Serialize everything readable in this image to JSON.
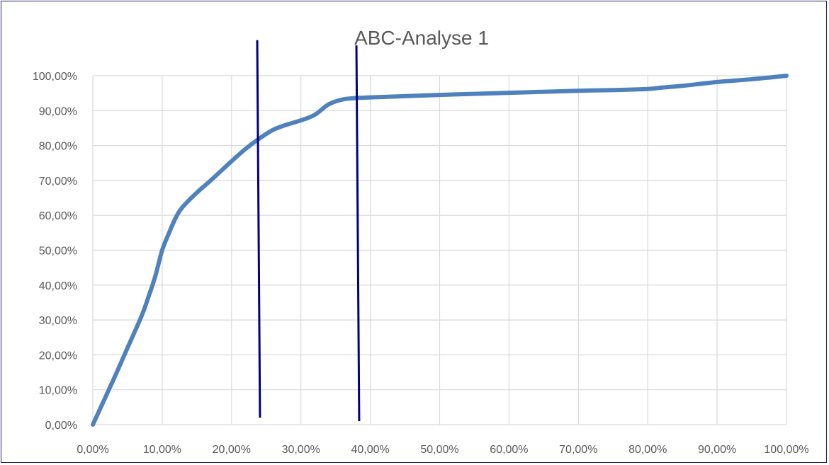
{
  "chart_data": {
    "type": "line",
    "title": "ABC-Analyse 1",
    "xlabel": "",
    "ylabel": "",
    "xlim": [
      0,
      100
    ],
    "ylim": [
      0,
      100
    ],
    "grid": true,
    "legend": "none",
    "x_ticks": [
      "0,00%",
      "10,00%",
      "20,00%",
      "30,00%",
      "40,00%",
      "50,00%",
      "60,00%",
      "70,00%",
      "80,00%",
      "90,00%",
      "100,00%"
    ],
    "y_ticks": [
      "0,00%",
      "10,00%",
      "20,00%",
      "30,00%",
      "40,00%",
      "50,00%",
      "60,00%",
      "70,00%",
      "80,00%",
      "90,00%",
      "100,00%"
    ],
    "series": [
      {
        "color": "#4f81bd",
        "x": [
          0,
          3,
          5,
          7,
          8,
          9,
          10,
          11,
          12,
          13,
          15,
          17,
          20,
          22,
          24,
          26,
          28,
          30,
          32,
          34,
          36,
          38,
          40,
          50,
          60,
          70,
          75,
          80,
          82,
          85,
          90,
          95,
          100
        ],
        "y": [
          0,
          13,
          22,
          31,
          36.5,
          42.5,
          50,
          55,
          59.5,
          62.5,
          66.5,
          70,
          75.5,
          79,
          82,
          84.5,
          86,
          87.2,
          88.8,
          91.8,
          93.2,
          93.6,
          93.8,
          94.5,
          95.1,
          95.7,
          95.9,
          96.2,
          96.6,
          97.1,
          98.2,
          99,
          100
        ]
      }
    ],
    "annotations": [
      {
        "type": "vertical-line",
        "color": "#000080",
        "x_top": 23.7,
        "x_bottom": 24.1,
        "y_top": 110.2,
        "y_bottom": 2
      },
      {
        "type": "vertical-line",
        "color": "#000080",
        "x_top": 38.0,
        "x_bottom": 38.4,
        "y_top": 108.7,
        "y_bottom": 1
      }
    ]
  }
}
